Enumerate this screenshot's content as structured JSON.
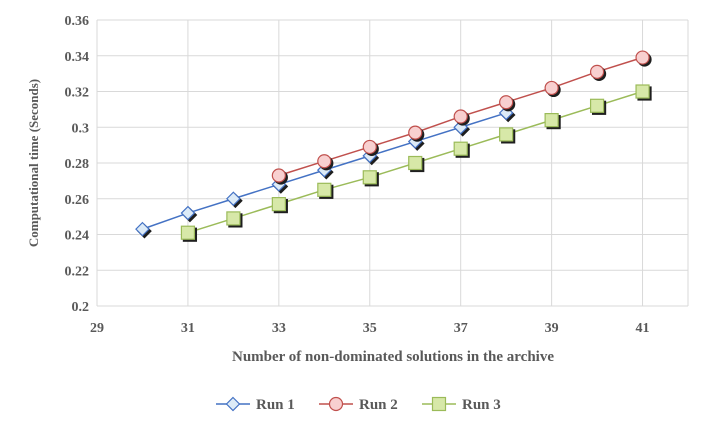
{
  "chart_data": {
    "type": "line",
    "title": "",
    "xlabel": "Number of non-dominated solutions in the archive",
    "ylabel": "Computational time (Seconds)",
    "xlim": [
      29,
      42
    ],
    "ylim": [
      0.2,
      0.36
    ],
    "xticks": [
      29,
      31,
      33,
      35,
      37,
      39,
      41
    ],
    "yticks": [
      0.2,
      0.22,
      0.24,
      0.26,
      0.28,
      0.3,
      0.32,
      0.34,
      0.36
    ],
    "ytick_labels": [
      "0.2",
      "0.22",
      "0.24",
      "0.26",
      "0.28",
      "0.3",
      "0.32",
      "0.34",
      "0.36"
    ],
    "grid": true,
    "legend_position": "bottom-center",
    "series": [
      {
        "name": "Run 1",
        "marker": "diamond",
        "line_color": "#4472C4",
        "marker_fill": "#DDEBF7",
        "x": [
          30,
          31,
          32,
          33,
          34,
          35,
          36,
          37,
          38
        ],
        "y": [
          0.243,
          0.252,
          0.26,
          0.268,
          0.276,
          0.284,
          0.292,
          0.3,
          0.308
        ]
      },
      {
        "name": "Run 2",
        "marker": "circle",
        "line_color": "#C0504D",
        "marker_fill": "#F8D0D0",
        "x": [
          33,
          34,
          35,
          36,
          37,
          38,
          39,
          40,
          41
        ],
        "y": [
          0.273,
          0.281,
          0.289,
          0.297,
          0.306,
          0.314,
          0.322,
          0.331,
          0.339
        ]
      },
      {
        "name": "Run 3",
        "marker": "square",
        "line_color": "#9BBB59",
        "marker_fill": "#D7E8A8",
        "x": [
          31,
          32,
          33,
          34,
          35,
          36,
          37,
          38,
          39,
          40,
          41
        ],
        "y": [
          0.241,
          0.249,
          0.257,
          0.265,
          0.272,
          0.28,
          0.288,
          0.296,
          0.304,
          0.312,
          0.32
        ]
      }
    ]
  }
}
